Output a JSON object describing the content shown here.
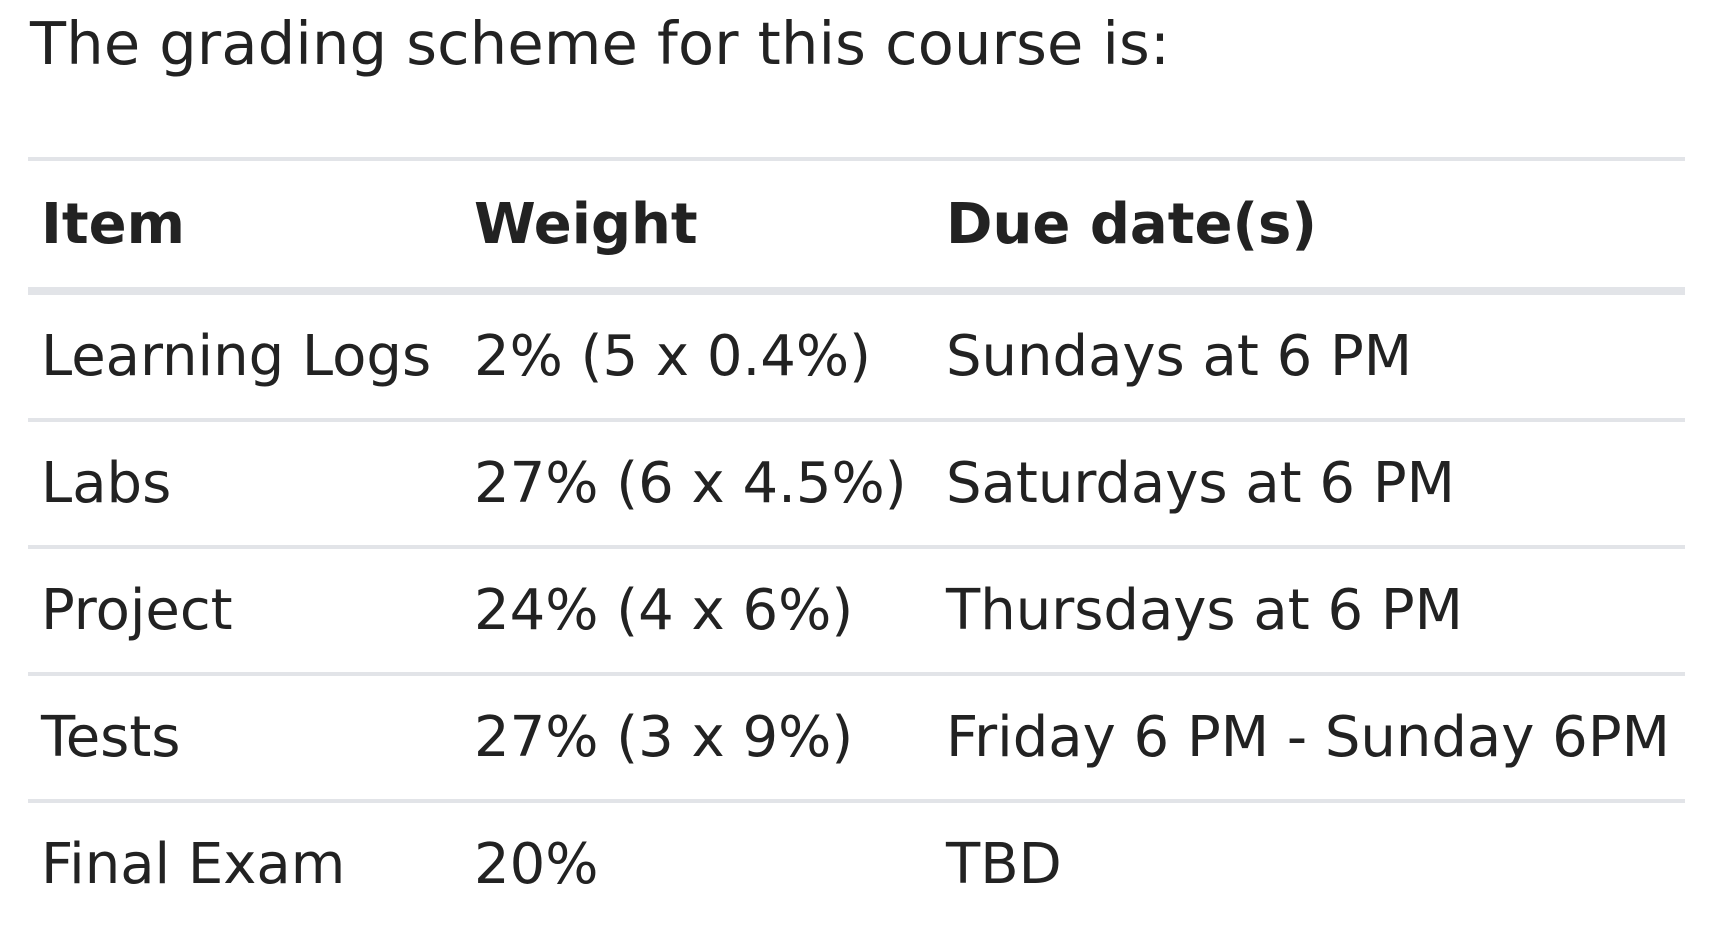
{
  "intro_text": "The grading scheme for this course is:",
  "table": {
    "headers": [
      "Item",
      "Weight",
      "Due date(s)"
    ],
    "rows": [
      [
        "Learning Logs",
        "2% (5 x 0.4%)",
        "Sundays at 6 PM"
      ],
      [
        "Labs",
        "27% (6 x 4.5%)",
        "Saturdays at 6 PM"
      ],
      [
        "Project",
        "24% (4 x 6%)",
        "Thursdays at 6 PM"
      ],
      [
        "Tests",
        "27% (3 x 9%)",
        "Friday 6 PM - Sunday 6PM"
      ],
      [
        "Final Exam",
        "20%",
        "TBD"
      ]
    ]
  },
  "colors": {
    "text": "#222222",
    "rule": "#e2e4e8",
    "background": "#ffffff"
  }
}
